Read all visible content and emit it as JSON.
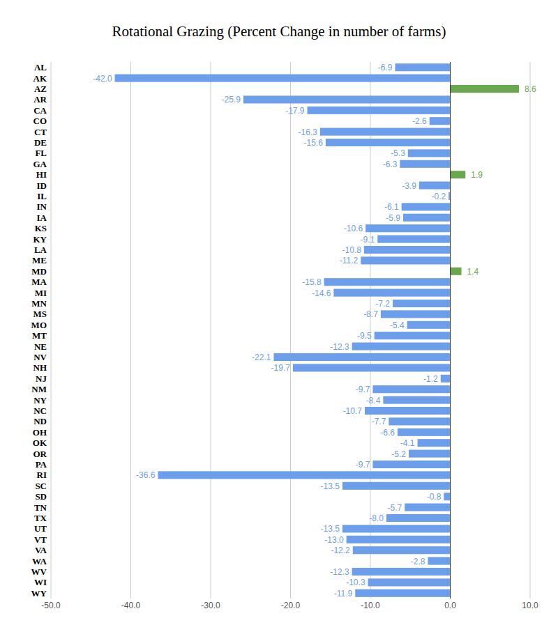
{
  "chart_data": {
    "type": "bar",
    "title": "Rotational Grazing (Percent Change in number of farms)",
    "orientation": "horizontal",
    "categories": [
      "AL",
      "AK",
      "AZ",
      "AR",
      "CA",
      "CO",
      "CT",
      "DE",
      "FL",
      "GA",
      "HI",
      "ID",
      "IL",
      "IN",
      "IA",
      "KS",
      "KY",
      "LA",
      "ME",
      "MD",
      "MA",
      "MI",
      "MN",
      "MS",
      "MO",
      "MT",
      "NE",
      "NV",
      "NH",
      "NJ",
      "NM",
      "NY",
      "NC",
      "ND",
      "OH",
      "OK",
      "OR",
      "PA",
      "RI",
      "SC",
      "SD",
      "TN",
      "TX",
      "UT",
      "VT",
      "VA",
      "WA",
      "WV",
      "WI",
      "WY"
    ],
    "values": [
      -6.9,
      -42.0,
      8.6,
      -25.9,
      -17.9,
      -2.6,
      -16.3,
      -15.6,
      -5.3,
      -6.3,
      1.9,
      -3.9,
      -0.2,
      -6.1,
      -5.9,
      -10.6,
      -9.1,
      -10.8,
      -11.2,
      1.4,
      -15.8,
      -14.6,
      -7.2,
      -8.7,
      -5.4,
      -9.5,
      -12.3,
      -22.1,
      -19.7,
      -1.2,
      -9.7,
      -8.4,
      -10.7,
      -7.7,
      -6.6,
      -4.1,
      -5.2,
      -9.7,
      -36.6,
      -13.5,
      -0.8,
      -5.7,
      -8.0,
      -13.5,
      -13.0,
      -12.2,
      -2.8,
      -12.3,
      -10.3,
      -11.9
    ],
    "value_labels": [
      "-6.9",
      "-42.0",
      "8.6",
      "-25.9",
      "-17.9",
      "-2.6",
      "-16.3",
      "-15.6",
      "-5.3",
      "-6.3",
      "1.9",
      "-3.9",
      "-0.2",
      "-6.1",
      "-5.9",
      "-10.6",
      "-9.1",
      "-10.8",
      "-11.2",
      "1.4",
      "-15.8",
      "-14.6",
      "-7.2",
      "-8.7",
      "-5.4",
      "-9.5",
      "-12.3",
      "-22.1",
      "-19.7",
      "-1.2",
      "-9.7",
      "-8.4",
      "-10.7",
      "-7.7",
      "-6.6",
      "-4.1",
      "-5.2",
      "-9.7",
      "-36.6",
      "-13.5",
      "-0.8",
      "-5.7",
      "-8.0",
      "-13.5",
      "-13.0",
      "-12.2",
      "-2.8",
      "-12.3",
      "-10.3",
      "-11.9"
    ],
    "colors": [
      "#6d9eeb",
      "#6d9eeb",
      "#6aa84f",
      "#6d9eeb",
      "#6d9eeb",
      "#6d9eeb",
      "#6d9eeb",
      "#6d9eeb",
      "#6d9eeb",
      "#6d9eeb",
      "#6aa84f",
      "#6d9eeb",
      "#6d9eeb",
      "#6d9eeb",
      "#6d9eeb",
      "#6d9eeb",
      "#6d9eeb",
      "#6d9eeb",
      "#6d9eeb",
      "#6aa84f",
      "#6d9eeb",
      "#6d9eeb",
      "#6d9eeb",
      "#6d9eeb",
      "#6d9eeb",
      "#6d9eeb",
      "#6d9eeb",
      "#6d9eeb",
      "#6d9eeb",
      "#6d9eeb",
      "#6d9eeb",
      "#6d9eeb",
      "#6d9eeb",
      "#6d9eeb",
      "#6d9eeb",
      "#6d9eeb",
      "#6d9eeb",
      "#6d9eeb",
      "#6d9eeb",
      "#6d9eeb",
      "#6d9eeb",
      "#6d9eeb",
      "#6d9eeb",
      "#6d9eeb",
      "#6d9eeb",
      "#6d9eeb",
      "#6d9eeb",
      "#6d9eeb",
      "#6d9eeb",
      "#6d9eeb"
    ],
    "xlim": [
      -50,
      10
    ],
    "xticks": [
      {
        "value": -50,
        "label": "-50.0"
      },
      {
        "value": -40,
        "label": "-40.0"
      },
      {
        "value": -30,
        "label": "-30.0"
      },
      {
        "value": -20,
        "label": "-20.0"
      },
      {
        "value": -10,
        "label": "-10.0"
      },
      {
        "value": 0,
        "label": "0.0"
      },
      {
        "value": 10,
        "label": "10.0"
      }
    ],
    "grid": true,
    "data_labels": true
  }
}
